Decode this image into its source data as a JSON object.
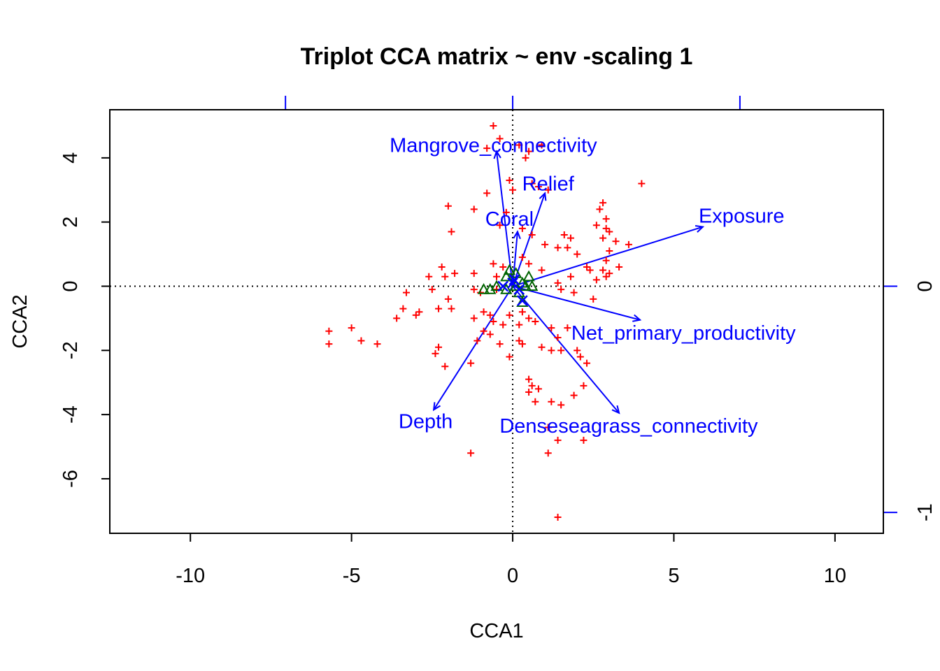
{
  "chart_data": {
    "type": "scatter",
    "title": "Triplot CCA matrix ~ env -scaling 1",
    "xlabel": "CCA1",
    "ylabel": "CCA2",
    "xlim": [
      -12.5,
      11.5
    ],
    "ylim": [
      -7.7,
      5.5
    ],
    "x_ticks": [
      -10,
      -5,
      0,
      5,
      10
    ],
    "x_tick_labels": [
      "-10",
      "-5",
      "0",
      "5",
      "10"
    ],
    "y_ticks": [
      4,
      2,
      0,
      -2,
      -4,
      -6
    ],
    "y_tick_labels": [
      "4",
      "2",
      "0",
      "-2",
      "-4",
      "-6"
    ],
    "secondary_x_ticks": [
      -1,
      0,
      1
    ],
    "secondary_x_scale": 7.05,
    "secondary_y_ticks": [
      0,
      -1
    ],
    "secondary_y_tick_labels": [
      "0",
      "-1"
    ],
    "secondary_y_scale": 7.05,
    "colors": {
      "sites": "#ff0000",
      "species": "#006400",
      "env": "#0000ff",
      "axes": "#000000"
    },
    "sites": [
      [
        -0.6,
        5.0
      ],
      [
        -0.4,
        4.6
      ],
      [
        0.2,
        4.4
      ],
      [
        0.5,
        4.2
      ],
      [
        -0.8,
        4.3
      ],
      [
        0.4,
        4.0
      ],
      [
        0.9,
        4.4
      ],
      [
        0,
        3.0
      ],
      [
        -0.1,
        3.3
      ],
      [
        0.6,
        3.2
      ],
      [
        0.8,
        3.1
      ],
      [
        1.1,
        3.0
      ],
      [
        -0.8,
        2.9
      ],
      [
        -0.2,
        2.3
      ],
      [
        4.0,
        3.2
      ],
      [
        2.8,
        2.6
      ],
      [
        2.7,
        2.4
      ],
      [
        2.9,
        2.1
      ],
      [
        2.6,
        1.9
      ],
      [
        2.9,
        1.8
      ],
      [
        3.0,
        1.7
      ],
      [
        2.8,
        1.5
      ],
      [
        3.2,
        1.4
      ],
      [
        3.6,
        1.3
      ],
      [
        -2.0,
        2.5
      ],
      [
        -1.2,
        2.4
      ],
      [
        -1.9,
        1.7
      ],
      [
        -0.4,
        1.9
      ],
      [
        0.3,
        1.8
      ],
      [
        0.6,
        1.6
      ],
      [
        1.6,
        1.6
      ],
      [
        1.8,
        1.5
      ],
      [
        1.4,
        1.2
      ],
      [
        1.0,
        1.3
      ],
      [
        1.7,
        1.2
      ],
      [
        2.0,
        1.0
      ],
      [
        3.0,
        1.1
      ],
      [
        2.9,
        0.8
      ],
      [
        3.3,
        0.6
      ],
      [
        2.3,
        0.6
      ],
      [
        2.4,
        0.5
      ],
      [
        2.8,
        0.5
      ],
      [
        3.0,
        0.4
      ],
      [
        2.6,
        0.2
      ],
      [
        2.9,
        0.3
      ],
      [
        1.8,
        0.3
      ],
      [
        1.4,
        0.1
      ],
      [
        1.5,
        -0.1
      ],
      [
        1.9,
        -0.2
      ],
      [
        2.5,
        -0.4
      ],
      [
        0.9,
        0.5
      ],
      [
        0.5,
        0.7
      ],
      [
        0.3,
        0.9
      ],
      [
        -0.6,
        0.7
      ],
      [
        -0.3,
        0.6
      ],
      [
        -1.2,
        0.4
      ],
      [
        -0.5,
        0.3
      ],
      [
        -1.8,
        0.4
      ],
      [
        -2.2,
        0.6
      ],
      [
        -2.1,
        0.3
      ],
      [
        -2.6,
        0.3
      ],
      [
        -2.5,
        -0.1
      ],
      [
        -1.2,
        -0.1
      ],
      [
        -1.0,
        -0.2
      ],
      [
        -0.5,
        -0.1
      ],
      [
        -3.3,
        -0.2
      ],
      [
        -2.0,
        -0.4
      ],
      [
        -2.3,
        -0.7
      ],
      [
        -1.9,
        -0.7
      ],
      [
        -3.4,
        -0.7
      ],
      [
        -2.9,
        -0.8
      ],
      [
        -3.0,
        -0.9
      ],
      [
        -3.6,
        -1.0
      ],
      [
        -0.9,
        -0.8
      ],
      [
        -0.7,
        -0.9
      ],
      [
        -1.2,
        -1.0
      ],
      [
        -0.6,
        -1.1
      ],
      [
        -0.1,
        -0.9
      ],
      [
        0.3,
        -0.8
      ],
      [
        0.5,
        -1.0
      ],
      [
        -0.3,
        -1.2
      ],
      [
        -0.9,
        -1.4
      ],
      [
        -0.7,
        -1.5
      ],
      [
        0.2,
        -1.2
      ],
      [
        0.7,
        -1.1
      ],
      [
        1.2,
        -1.3
      ],
      [
        1.7,
        -1.3
      ],
      [
        1.4,
        -1.6
      ],
      [
        -5.7,
        -1.4
      ],
      [
        -5.0,
        -1.3
      ],
      [
        -4.7,
        -1.7
      ],
      [
        -4.2,
        -1.8
      ],
      [
        -5.7,
        -1.8
      ],
      [
        -1.1,
        -1.7
      ],
      [
        -0.4,
        -1.8
      ],
      [
        0.2,
        -1.7
      ],
      [
        0.3,
        -1.8
      ],
      [
        0.9,
        -1.9
      ],
      [
        1.2,
        -2.0
      ],
      [
        1.5,
        -2.0
      ],
      [
        2.0,
        -2.0
      ],
      [
        2.1,
        -2.2
      ],
      [
        -2.3,
        -1.9
      ],
      [
        -2.4,
        -2.1
      ],
      [
        -0.1,
        -2.2
      ],
      [
        2.3,
        -2.4
      ],
      [
        -1.3,
        -2.4
      ],
      [
        -2.1,
        -2.5
      ],
      [
        0.5,
        -2.9
      ],
      [
        0.6,
        -3.1
      ],
      [
        0.5,
        -3.3
      ],
      [
        0.7,
        -3.6
      ],
      [
        1.2,
        -3.6
      ],
      [
        1.5,
        -3.7
      ],
      [
        0.8,
        -3.2
      ],
      [
        2.2,
        -3.1
      ],
      [
        1.9,
        -3.4
      ],
      [
        1.1,
        -4.4
      ],
      [
        1.4,
        -4.8
      ],
      [
        2.2,
        -4.8
      ],
      [
        -1.3,
        -5.2
      ],
      [
        1.1,
        -5.2
      ],
      [
        1.4,
        -7.2
      ]
    ],
    "species": [
      [
        -0.1,
        0.5
      ],
      [
        0.1,
        0.4
      ],
      [
        -0.2,
        0.3
      ],
      [
        0.5,
        0.3
      ],
      [
        0.3,
        0.1
      ],
      [
        0.1,
        0.0
      ],
      [
        -0.5,
        0.0
      ],
      [
        -0.2,
        -0.1
      ],
      [
        -0.7,
        -0.1
      ],
      [
        -0.9,
        -0.1
      ],
      [
        0.2,
        -0.2
      ],
      [
        0.4,
        0.0
      ],
      [
        0.6,
        0.0
      ],
      [
        0.3,
        -0.5
      ]
    ],
    "centroids": [
      [
        0.05,
        0.2
      ],
      [
        -0.3,
        0.0
      ],
      [
        0.2,
        -0.1
      ],
      [
        0.3,
        -0.45
      ],
      [
        0.0,
        0.1
      ]
    ],
    "env_arrows": [
      {
        "name": "Mangrove_connectivity",
        "x": -0.5,
        "y": 4.2,
        "label_x": -0.6,
        "label_y": 4.4
      },
      {
        "name": "Relief",
        "x": 1.0,
        "y": 2.9,
        "label_x": 1.1,
        "label_y": 3.2
      },
      {
        "name": "Coral",
        "x": 0.15,
        "y": 1.7,
        "label_x": -0.1,
        "label_y": 2.1
      },
      {
        "name": "Exposure",
        "x": 5.9,
        "y": 1.85,
        "label_x": 7.1,
        "label_y": 2.2
      },
      {
        "name": "Net_primary_productivity",
        "x": 3.95,
        "y": -1.05,
        "label_x": 5.3,
        "label_y": -1.45
      },
      {
        "name": "Depth",
        "x": -2.45,
        "y": -3.85,
        "label_x": -2.7,
        "label_y": -4.2
      },
      {
        "name": "Denseseagrass_connectivity",
        "x": 3.3,
        "y": -3.95,
        "label_x": 3.6,
        "label_y": -4.35
      }
    ]
  }
}
